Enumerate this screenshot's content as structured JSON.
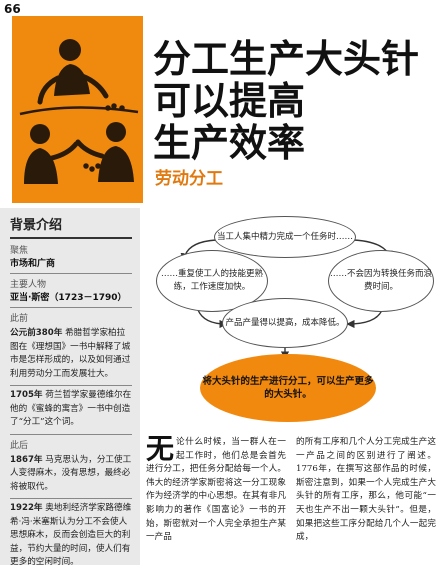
{
  "page_number": "66",
  "header": {
    "title_lines": [
      "分工生产大头针",
      "可以提高",
      "生产效率"
    ],
    "subtitle": "劳动分工"
  },
  "sidebar": {
    "heading": "背景介绍",
    "field_label": "聚焦",
    "field_value": "市场和广商",
    "person_label": "主要人物",
    "person_value": "亚当·斯密（1723－1790）",
    "before_label": "此前",
    "before_entries": [
      {
        "year": "公元前380年",
        "text": "希腊哲学家柏拉图在《理想国》一书中解释了城市是怎样形成的，以及如何通过利用劳动分工而发展壮大。"
      },
      {
        "year": "1705年",
        "text": "荷兰哲学家曼德维尔在他的《蜜蜂的寓言》一书中创造了“分工”这个词。"
      }
    ],
    "after_label": "此后",
    "after_entries": [
      {
        "year": "1867年",
        "text": "马克思认为，分工使工人变得麻木，没有思想，最终必将被取代。"
      },
      {
        "year": "1922年",
        "text": "奥地利经济学家路德维希·冯·米塞斯认为分工不会使人思想麻木，反而会创造巨大的利益，节约大量的时间，使人们有更多的空闲时间。"
      }
    ]
  },
  "diagram": {
    "node_top": "当工人集中精力完成一个任务时……",
    "node_left": "……重复使工人的技能更熟练，工作速度加快。",
    "node_right": "……不会因为转换任务而浪费时间。",
    "node_bottom": "产品产量得以提高，成本降低。",
    "result": "将大头针的生产进行分工，可以生产更多的大头针。"
  },
  "body": {
    "dropcap": "无",
    "col1": "论什么时候，当一群人在一起工作时，他们总是会首先进行分工，把任务分配给每一个人。伟大的经济学家斯密将这一分工现象作为经济学的中心思想。在其有非凡影响力的著作《国富论》一书的开始，斯密就对一个人完全承担生产某一产品",
    "col2": "的所有工序和几个人分工完成生产这一产品之间的区别进行了阐述。1776年，在撰写这部作品的时候，斯密注意到，如果一个人完成生产大头针的所有工序，那么，他可能“一天也生产不出一颗大头针”。但是，如果把这些工序分配给几个人一起完成，"
  }
}
